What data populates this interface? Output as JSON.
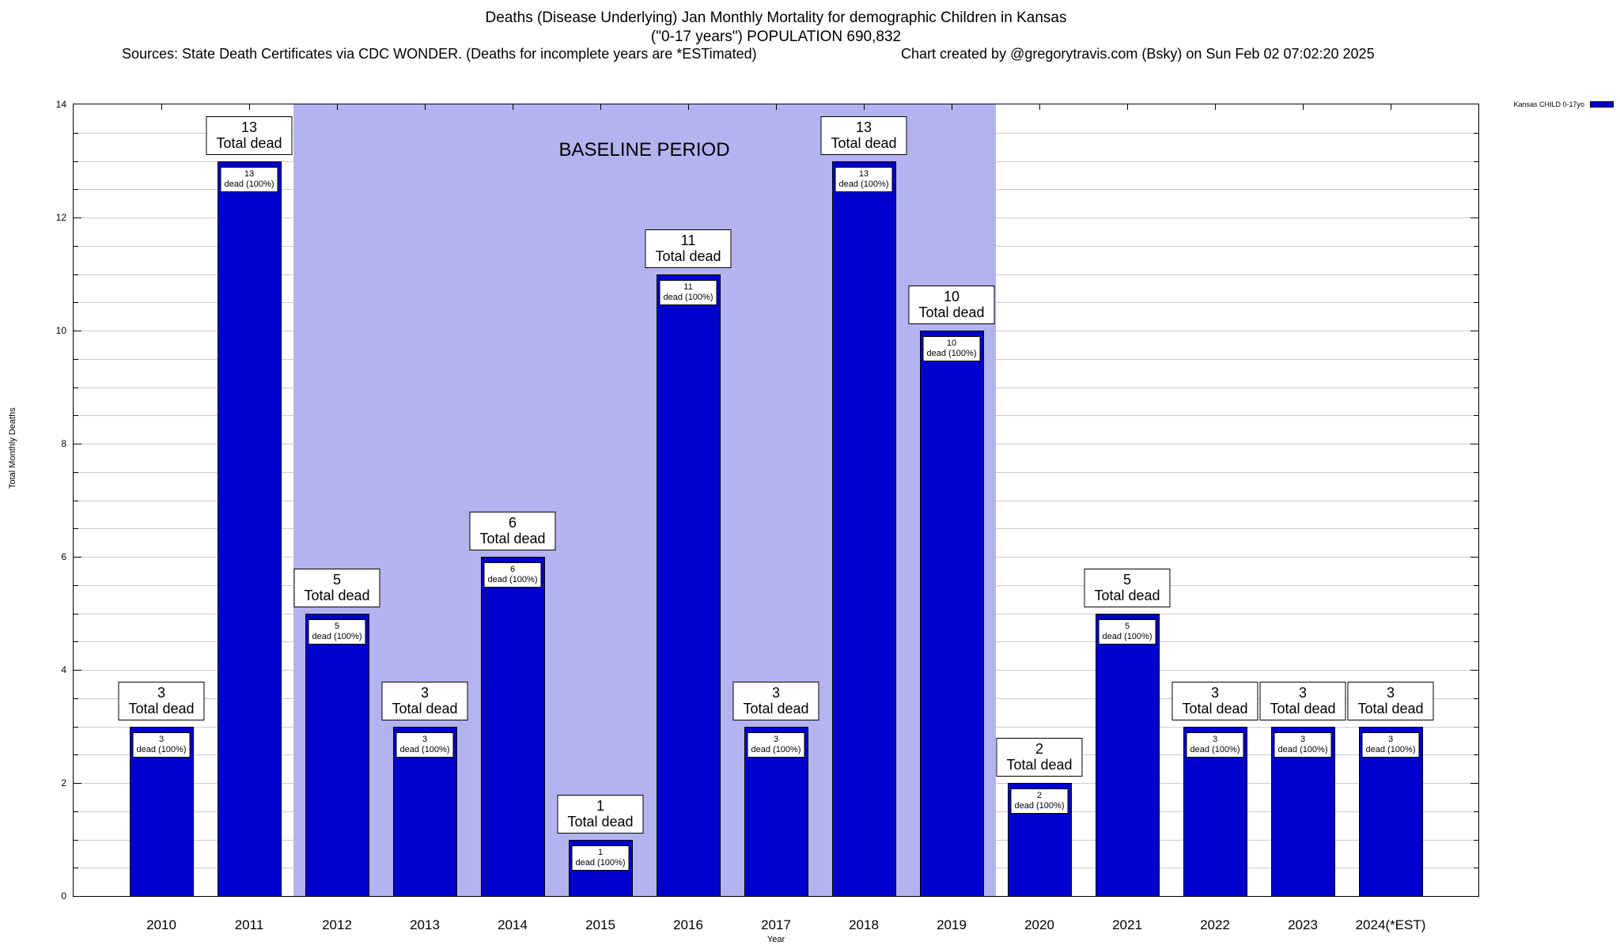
{
  "header": {
    "title_line1": "Deaths (Disease Underlying) Jan Monthly Mortality for demographic Children in Kansas",
    "title_line2": "(\"0-17 years\") POPULATION 690,832",
    "sources": "Sources: State Death Certificates via CDC WONDER. (Deaths for incomplete years are *ESTimated)",
    "credit": "Chart created by @gregorytravis.com (Bsky) on Sun Feb 02 07:02:20 2025"
  },
  "legend": {
    "label": "Kansas CHILD 0-17yo",
    "color": "#0000cd",
    "position": "top-right"
  },
  "chart_data": {
    "type": "bar",
    "title": "Deaths (Disease Underlying) Jan Monthly Mortality for demographic Children in Kansas (\"0-17 years\") POPULATION 690,832",
    "xlabel": "Year",
    "ylabel": "Total Monthly Deaths",
    "ylim": [
      0,
      14
    ],
    "ytick_step": 2,
    "minor_grid_step": 0.5,
    "grid": "horizontal",
    "legend_position": "top-right",
    "categories": [
      "2010",
      "2011",
      "2012",
      "2013",
      "2014",
      "2015",
      "2016",
      "2017",
      "2018",
      "2019",
      "2020",
      "2021",
      "2022",
      "2023",
      "2024(*EST)"
    ],
    "values": [
      3,
      13,
      5,
      3,
      6,
      1,
      11,
      3,
      13,
      10,
      2,
      5,
      3,
      3,
      3
    ],
    "bar_color": "#0000cd",
    "total_label": "Total dead",
    "inner_label": "dead (100%)",
    "baseline": {
      "label": "BASELINE PERIOD",
      "start_category": "2012",
      "end_category": "2019",
      "start_index": 2,
      "end_index": 9,
      "color": "#b3b3f0"
    },
    "series": [
      {
        "name": "Kansas CHILD 0-17yo",
        "values": [
          3,
          13,
          5,
          3,
          6,
          1,
          11,
          3,
          13,
          10,
          2,
          5,
          3,
          3,
          3
        ]
      }
    ]
  }
}
